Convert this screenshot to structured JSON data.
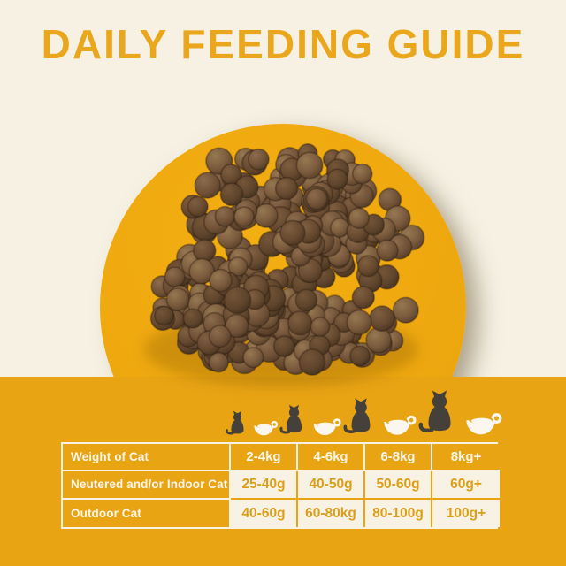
{
  "title": "DAILY FEEDING GUIDE",
  "colors": {
    "background_cream": "#f6f1e3",
    "band_gold": "#e8a413",
    "plate_gold": "#efa90f",
    "title_gold": "#eaa71d",
    "table_value_text": "#dd9e17",
    "table_label_text": "#fbf6ea",
    "cat_silhouette": "#45403a",
    "cup_white": "#fbf7ee",
    "kibble_brown": "#6e5036"
  },
  "icons": [
    "cat-with-cup-small",
    "cat-with-cup-medium",
    "cat-with-cup-large",
    "cat-with-cup-xlarge"
  ],
  "chart_data": {
    "type": "table",
    "title": "DAILY FEEDING GUIDE",
    "columns": [
      "Weight of Cat",
      "2-4kg",
      "4-6kg",
      "6-8kg",
      "8kg+"
    ],
    "rows": [
      [
        "Neutered and/or Indoor Cat",
        "25-40g",
        "40-50g",
        "50-60g",
        "60g+"
      ],
      [
        "Outdoor Cat",
        "40-60g",
        "60-80kg",
        "80-100g",
        "100g+"
      ]
    ]
  }
}
